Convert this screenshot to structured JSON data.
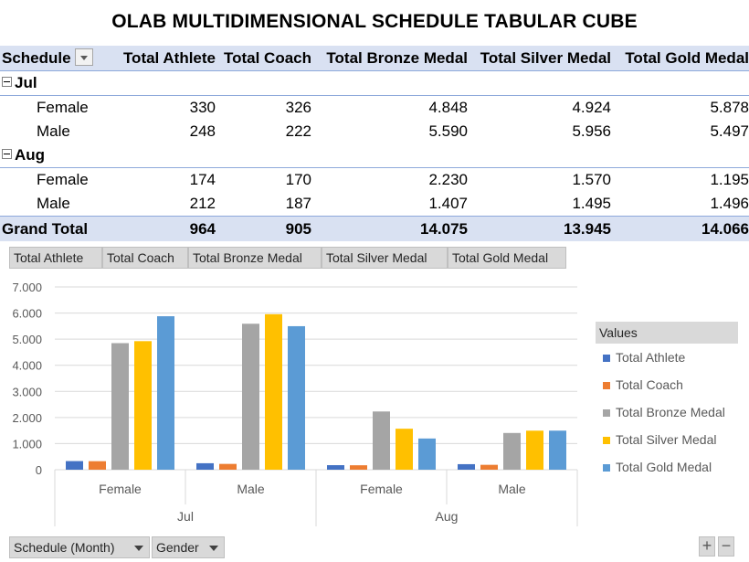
{
  "title": "OLAB MULTIDIMENSIONAL SCHEDULE TABULAR CUBE",
  "pivot": {
    "row_field": "Schedule",
    "columns": [
      "Total Athlete",
      "Total Coach",
      "Total Bronze Medal",
      "Total Silver Medal",
      "Total Gold Medal"
    ],
    "groups": [
      {
        "label": "Jul",
        "rows": [
          {
            "label": "Female",
            "values": [
              "330",
              "326",
              "4.848",
              "4.924",
              "5.878"
            ]
          },
          {
            "label": "Male",
            "values": [
              "248",
              "222",
              "5.590",
              "5.956",
              "5.497"
            ]
          }
        ]
      },
      {
        "label": "Aug",
        "rows": [
          {
            "label": "Female",
            "values": [
              "174",
              "170",
              "2.230",
              "1.570",
              "1.195"
            ]
          },
          {
            "label": "Male",
            "values": [
              "212",
              "187",
              "1.407",
              "1.495",
              "1.496"
            ]
          }
        ]
      }
    ],
    "grand_total": {
      "label": "Grand Total",
      "values": [
        "964",
        "905",
        "14.075",
        "13.945",
        "14.066"
      ]
    }
  },
  "field_buttons": [
    "Total Athlete",
    "Total Coach",
    "Total Bronze Medal",
    "Total Silver  Medal",
    "Total Gold  Medal"
  ],
  "legend_title": "Values",
  "axis_buttons": {
    "month": "Schedule (Month)",
    "gender": "Gender"
  },
  "zoom": {
    "plus": "+",
    "minus": "−"
  },
  "colors": {
    "athlete": "#4472c4",
    "coach": "#ed7d31",
    "bronze": "#a5a5a5",
    "silver": "#ffc000",
    "gold": "#5b9bd5"
  },
  "chart_data": {
    "type": "bar",
    "categories": [
      {
        "group": "Jul",
        "label": "Female"
      },
      {
        "group": "Jul",
        "label": "Male"
      },
      {
        "group": "Aug",
        "label": "Female"
      },
      {
        "group": "Aug",
        "label": "Male"
      }
    ],
    "groups": [
      "Jul",
      "Aug"
    ],
    "series": [
      {
        "name": "Total Athlete",
        "values": [
          330,
          248,
          174,
          212
        ]
      },
      {
        "name": "Total Coach",
        "values": [
          326,
          222,
          170,
          187
        ]
      },
      {
        "name": "Total Bronze Medal",
        "values": [
          4848,
          5590,
          2230,
          1407
        ]
      },
      {
        "name": "Total Silver Medal",
        "values": [
          4924,
          5956,
          1570,
          1495
        ]
      },
      {
        "name": "Total Gold Medal",
        "values": [
          5878,
          5497,
          1195,
          1496
        ]
      }
    ],
    "yticks": [
      "0",
      "1.000",
      "2.000",
      "3.000",
      "4.000",
      "5.000",
      "6.000",
      "7.000"
    ],
    "ylim": [
      0,
      7000
    ],
    "grid": true,
    "legend_position": "right"
  }
}
